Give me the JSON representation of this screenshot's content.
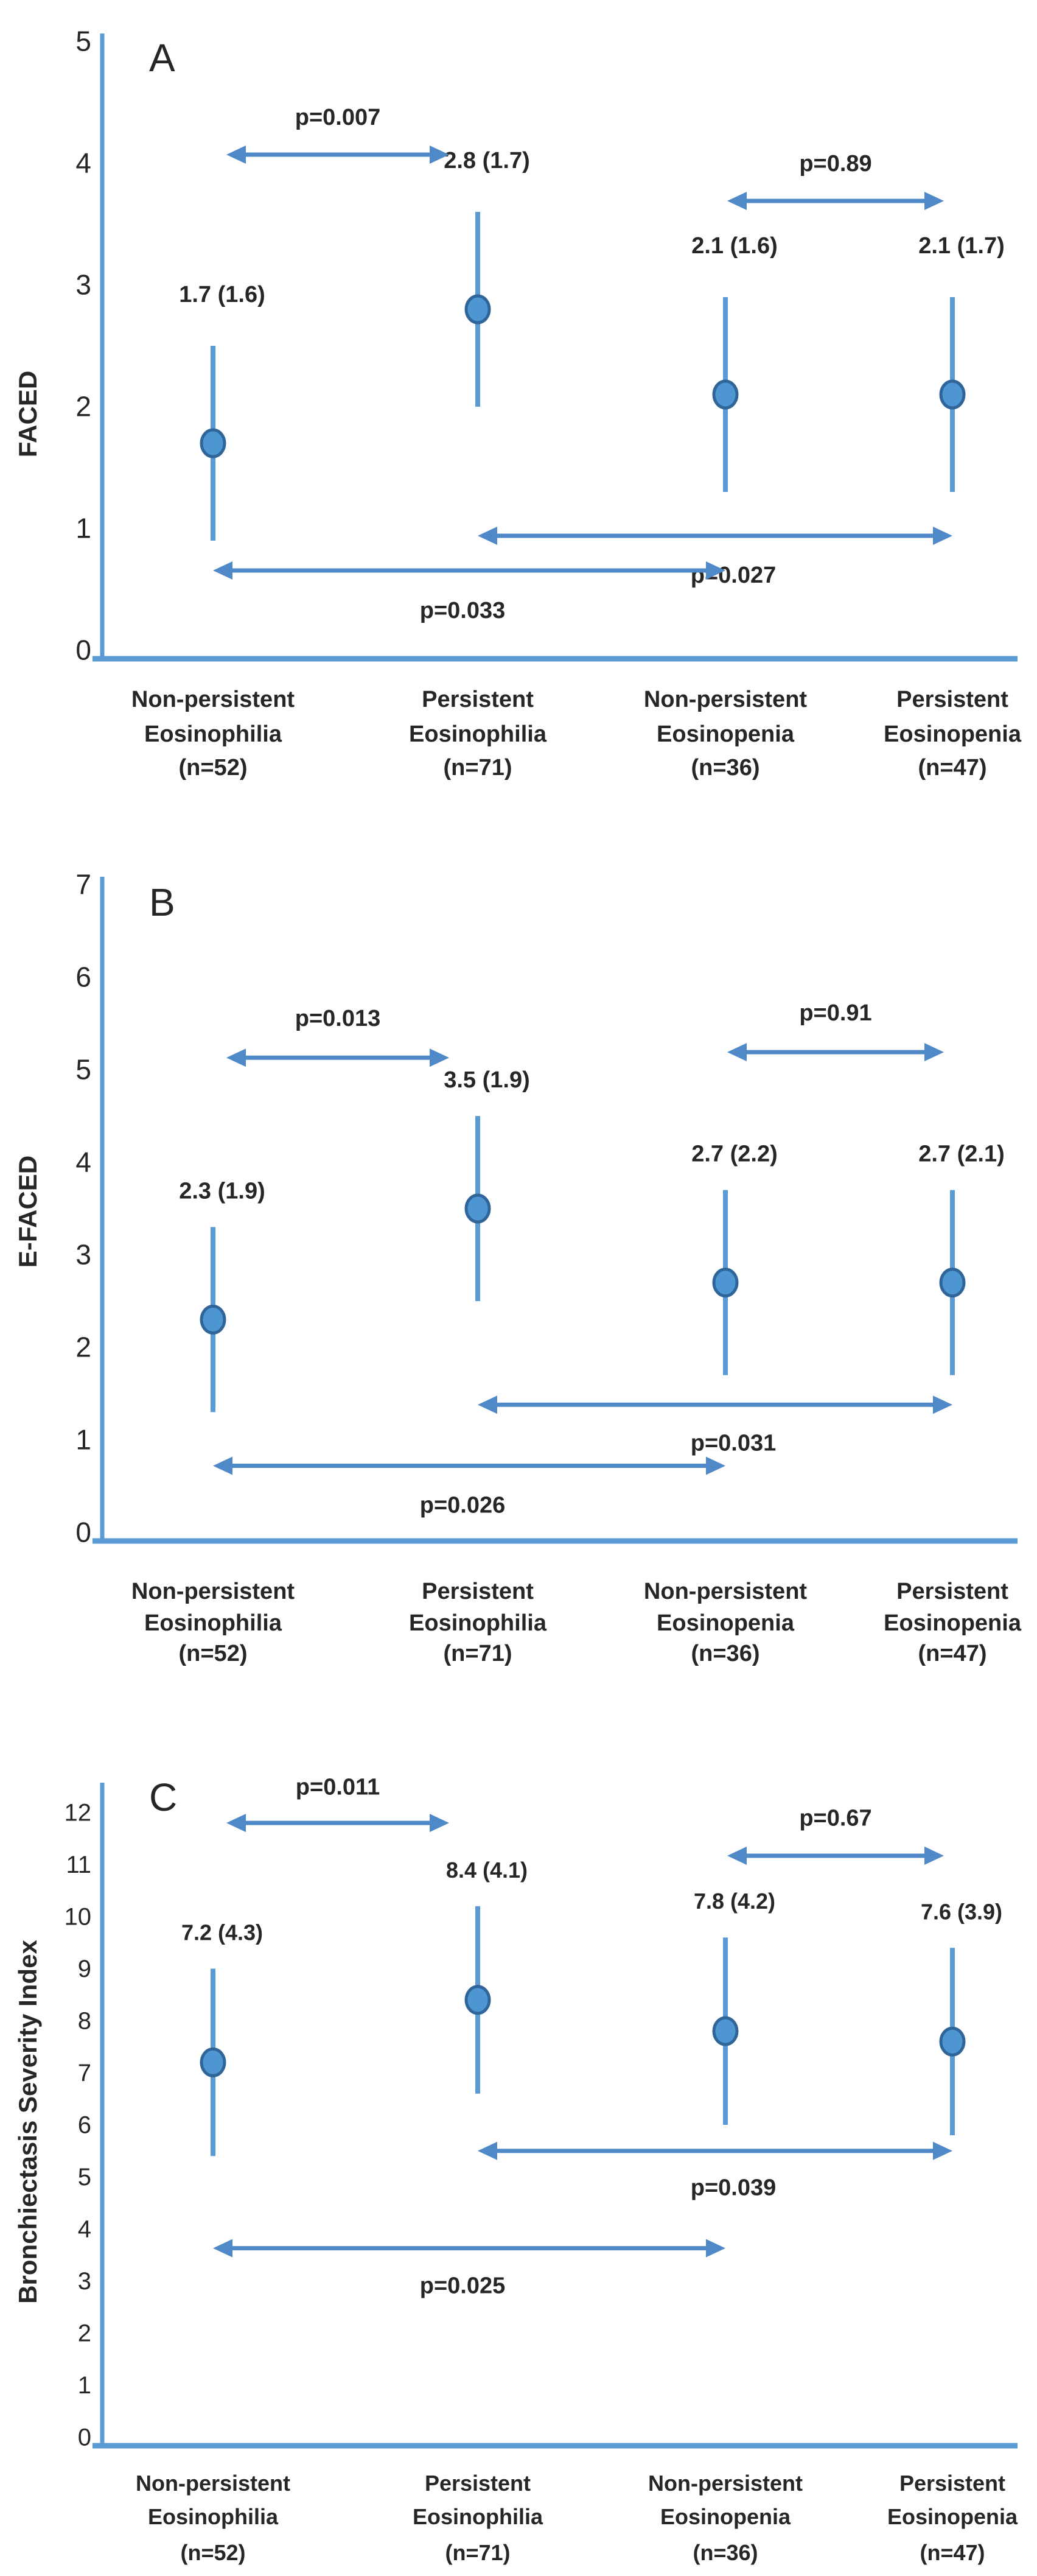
{
  "figure": {
    "background": "#ffffff",
    "axis_blue": "#5B9BD5",
    "arrow_blue": "#5089C7",
    "dot_fill": "#4E96D2",
    "dot_stroke": "#30659A",
    "significant_red": "#E8212B",
    "text_black": "#262626"
  },
  "chart_data": [
    {
      "type": "scatter",
      "panel_label": "A",
      "ylabel": "FACED",
      "ylim": [
        0,
        5
      ],
      "ytick_step": 1,
      "grid": false,
      "legend": "none",
      "groups": [
        {
          "label_lines": [
            "Non-persistent",
            "Eosinophilia",
            "(n=52)"
          ],
          "mean": 1.7,
          "sd": 1.6,
          "display": "1.7 (1.6)",
          "bar_low": 0.9,
          "bar_high": 2.5
        },
        {
          "label_lines": [
            "Persistent",
            "Eosinophilia",
            "(n=71)"
          ],
          "mean": 2.8,
          "sd": 1.7,
          "display": "2.8 (1.7)",
          "bar_low": 2.0,
          "bar_high": 3.6
        },
        {
          "label_lines": [
            "Non-persistent",
            "Eosinopenia",
            "(n=36)"
          ],
          "mean": 2.1,
          "sd": 1.6,
          "display": "2.1 (1.6)",
          "bar_low": 1.3,
          "bar_high": 2.9
        },
        {
          "label_lines": [
            "Persistent",
            "Eosinopenia",
            "(n=47)"
          ],
          "mean": 2.1,
          "sd": 1.7,
          "display": "2.1 (1.7)",
          "bar_low": 1.3,
          "bar_high": 2.9
        }
      ],
      "comparisons": [
        {
          "label": "p=0.007",
          "significant": true,
          "between": [
            0,
            1
          ],
          "arrow_y": 4.07,
          "label_y": 4.38
        },
        {
          "label": "p=0.89",
          "significant": false,
          "between": [
            2,
            3
          ],
          "arrow_y": 3.69,
          "label_y": 4.0
        },
        {
          "label": "p=0.027",
          "significant": true,
          "between": [
            1,
            3
          ],
          "arrow_y": 0.94,
          "label_y": 0.62,
          "label_x": 1205
        },
        {
          "label": "p=0.033",
          "significant": true,
          "between": [
            0,
            2
          ],
          "arrow_y": 0.655,
          "label_y": 0.33,
          "label_x": 760
        }
      ]
    },
    {
      "type": "scatter",
      "panel_label": "B",
      "ylabel": "E-FACED",
      "ylim": [
        0,
        7
      ],
      "ytick_step": 1,
      "grid": false,
      "legend": "none",
      "groups": [
        {
          "label_lines": [
            "Non-persistent",
            "Eosinophilia",
            "(n=52)"
          ],
          "mean": 2.3,
          "sd": 1.9,
          "display": "2.3 (1.9)",
          "bar_low": 1.3,
          "bar_high": 3.3
        },
        {
          "label_lines": [
            "Persistent",
            "Eosinophilia",
            "(n=71)"
          ],
          "mean": 3.5,
          "sd": 1.9,
          "display": "3.5 (1.9)",
          "bar_low": 2.5,
          "bar_high": 4.5
        },
        {
          "label_lines": [
            "Non-persistent",
            "Eosinopenia",
            "(n=36)"
          ],
          "mean": 2.7,
          "sd": 2.2,
          "display": "2.7 (2.2)",
          "bar_low": 1.7,
          "bar_high": 3.7
        },
        {
          "label_lines": [
            "Persistent",
            "Eosinopenia",
            "(n=47)"
          ],
          "mean": 2.7,
          "sd": 2.1,
          "display": "2.7 (2.1)",
          "bar_low": 1.7,
          "bar_high": 3.7
        }
      ],
      "comparisons": [
        {
          "label": "p=0.013",
          "significant": true,
          "between": [
            0,
            1
          ],
          "arrow_y": 5.13,
          "label_y": 5.56
        },
        {
          "label": "p=0.91",
          "significant": false,
          "between": [
            2,
            3
          ],
          "arrow_y": 5.19,
          "label_y": 5.62
        },
        {
          "label": "p=0.031",
          "significant": true,
          "between": [
            1,
            3
          ],
          "arrow_y": 1.38,
          "label_y": 0.97,
          "label_x": 1205
        },
        {
          "label": "p=0.026",
          "significant": true,
          "between": [
            0,
            2
          ],
          "arrow_y": 0.72,
          "label_y": 0.3,
          "label_x": 760
        }
      ]
    },
    {
      "type": "scatter",
      "panel_label": "C",
      "ylabel": "Bronchiectasis Severity Index",
      "ylim": [
        0,
        12
      ],
      "ytick_step": 1,
      "grid": false,
      "legend": "none",
      "groups": [
        {
          "label_lines": [
            "Non-persistent",
            "Eosinophilia",
            "(n=52)"
          ],
          "mean": 7.2,
          "sd": 4.3,
          "display": "7.2 (4.3)",
          "bar_low": 5.4,
          "bar_high": 9.0
        },
        {
          "label_lines": [
            "Persistent",
            "Eosinophilia",
            "(n=71)"
          ],
          "mean": 8.4,
          "sd": 4.1,
          "display": "8.4 (4.1)",
          "bar_low": 6.6,
          "bar_high": 10.2
        },
        {
          "label_lines": [
            "Non-persistent",
            "Eosinopenia",
            "(n=36)"
          ],
          "mean": 7.8,
          "sd": 4.2,
          "display": "7.8 (4.2)",
          "bar_low": 6.0,
          "bar_high": 9.6
        },
        {
          "label_lines": [
            "Persistent",
            "Eosinopenia",
            "(n=47)"
          ],
          "mean": 7.6,
          "sd": 3.9,
          "display": "7.6 (3.9)",
          "bar_low": 5.8,
          "bar_high": 9.4
        }
      ],
      "comparisons": [
        {
          "label": "p=0.011",
          "significant": true,
          "between": [
            0,
            1
          ],
          "arrow_y": 11.8,
          "label_y": 12.5
        },
        {
          "label": "p=0.67",
          "significant": false,
          "between": [
            2,
            3
          ],
          "arrow_y": 11.17,
          "label_y": 11.9
        },
        {
          "label": "p=0.039",
          "significant": true,
          "between": [
            1,
            3
          ],
          "arrow_y": 5.5,
          "label_y": 4.8,
          "label_x": 1205
        },
        {
          "label": "p=0.025",
          "significant": true,
          "between": [
            0,
            2
          ],
          "arrow_y": 3.63,
          "label_y": 2.92,
          "label_x": 760
        }
      ]
    }
  ]
}
